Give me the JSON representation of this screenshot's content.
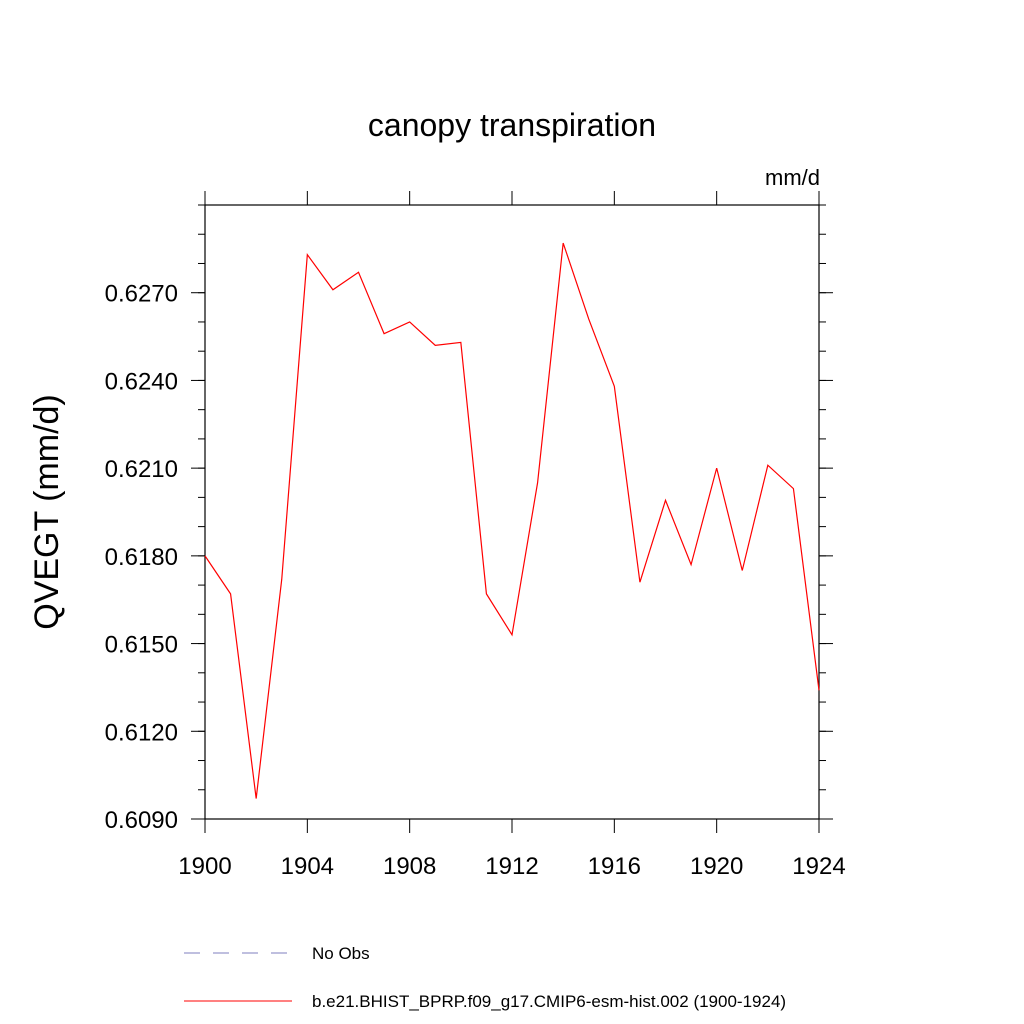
{
  "chart_data": {
    "type": "line",
    "title": "canopy transpiration",
    "units": "mm/d",
    "xlabel": "",
    "ylabel": "QVEGT  (mm/d)",
    "xlim": [
      1900,
      1924
    ],
    "ylim": [
      0.609,
      0.63
    ],
    "xticks": [
      1900,
      1904,
      1908,
      1912,
      1916,
      1920,
      1924
    ],
    "xtick_labels": [
      "1900",
      "1904",
      "1908",
      "1912",
      "1916",
      "1920",
      "1924"
    ],
    "yticks": [
      0.609,
      0.612,
      0.615,
      0.618,
      0.621,
      0.624,
      0.627
    ],
    "ytick_labels": [
      "0.6090",
      "0.6120",
      "0.6150",
      "0.6180",
      "0.6210",
      "0.6240",
      "0.6270"
    ],
    "grid": false,
    "legend_position": "bottom",
    "series": [
      {
        "name": "No Obs",
        "color": "#7f7fbf",
        "style": "dashed",
        "x": [],
        "y": []
      },
      {
        "name": "b.e21.BHIST_BPRP.f09_g17.CMIP6-esm-hist.002 (1900-1924)",
        "color": "#ff0000",
        "style": "solid",
        "x": [
          1900,
          1901,
          1902,
          1903,
          1904,
          1905,
          1906,
          1907,
          1908,
          1909,
          1910,
          1911,
          1912,
          1913,
          1914,
          1915,
          1916,
          1917,
          1918,
          1919,
          1920,
          1921,
          1922,
          1923,
          1924
        ],
        "y": [
          0.618,
          0.6167,
          0.6097,
          0.6172,
          0.6283,
          0.6271,
          0.6277,
          0.6256,
          0.626,
          0.6252,
          0.6253,
          0.6167,
          0.6153,
          0.6205,
          0.6287,
          0.6261,
          0.6238,
          0.6171,
          0.6199,
          0.6177,
          0.621,
          0.6175,
          0.6211,
          0.6203,
          0.6134
        ]
      }
    ]
  }
}
